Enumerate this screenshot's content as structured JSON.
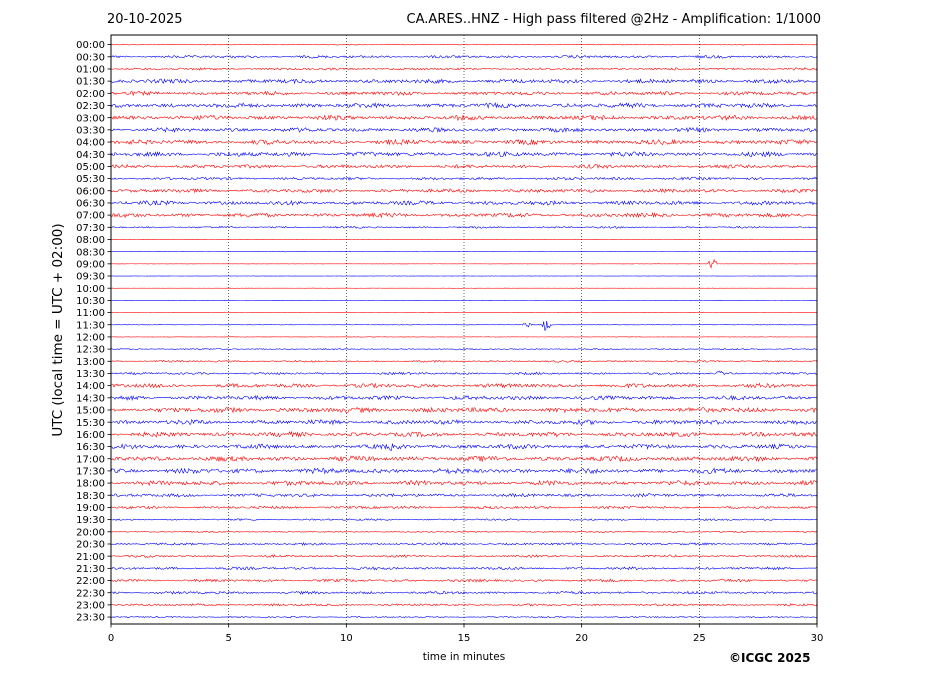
{
  "header": {
    "date": "20-10-2025",
    "title": "CA.ARES..HNZ - High pass filtered @2Hz - Amplification: 1/1000"
  },
  "copyright": "©ICGC 2025",
  "chart_data": {
    "type": "line",
    "xlabel": "time in minutes",
    "ylabel": "UTC (local time = UTC + 02:00)",
    "xlim": [
      0,
      30
    ],
    "x_ticks": [
      0,
      5,
      10,
      15,
      20,
      25,
      30
    ],
    "grid": "vertical dotted at 5, 10, 15, 20, 25",
    "trace_colors": [
      "#ff0000",
      "#0000ff"
    ],
    "rows": [
      "00:00",
      "00:30",
      "01:00",
      "01:30",
      "02:00",
      "02:30",
      "03:00",
      "03:30",
      "04:00",
      "04:30",
      "05:00",
      "05:30",
      "06:00",
      "06:30",
      "07:00",
      "07:30",
      "08:00",
      "08:30",
      "09:00",
      "09:30",
      "10:00",
      "10:30",
      "11:00",
      "11:30",
      "12:00",
      "12:30",
      "13:00",
      "13:30",
      "14:00",
      "14:30",
      "15:00",
      "15:30",
      "16:00",
      "16:30",
      "17:00",
      "17:30",
      "18:00",
      "18:30",
      "19:00",
      "19:30",
      "20:00",
      "20:30",
      "21:00",
      "21:30",
      "22:00",
      "22:30",
      "23:00",
      "23:30"
    ],
    "noise_level": [
      0.2,
      0.6,
      0.5,
      0.9,
      0.8,
      1.0,
      1.0,
      0.9,
      1.0,
      1.0,
      0.8,
      0.6,
      0.8,
      0.9,
      0.9,
      0.4,
      0.1,
      0.05,
      0.05,
      0.05,
      0.05,
      0.05,
      0.05,
      0.1,
      0.1,
      0.3,
      0.4,
      0.5,
      0.9,
      0.9,
      1.1,
      1.0,
      1.0,
      1.0,
      1.1,
      1.1,
      1.0,
      0.7,
      0.6,
      0.4,
      0.3,
      0.5,
      0.5,
      0.6,
      0.6,
      0.6,
      0.5,
      0.3
    ],
    "events": [
      {
        "row": "09:00",
        "minute": 25.6,
        "amplitude": 2.5
      },
      {
        "row": "11:30",
        "minute": 18.5,
        "amplitude": 2.0
      },
      {
        "row": "11:30",
        "minute": 17.7,
        "amplitude": 0.8
      },
      {
        "row": "16:30",
        "minute": 12.0,
        "amplitude": 0.8
      },
      {
        "row": "13:30",
        "minute": 25.9,
        "amplitude": 0.8
      }
    ]
  }
}
